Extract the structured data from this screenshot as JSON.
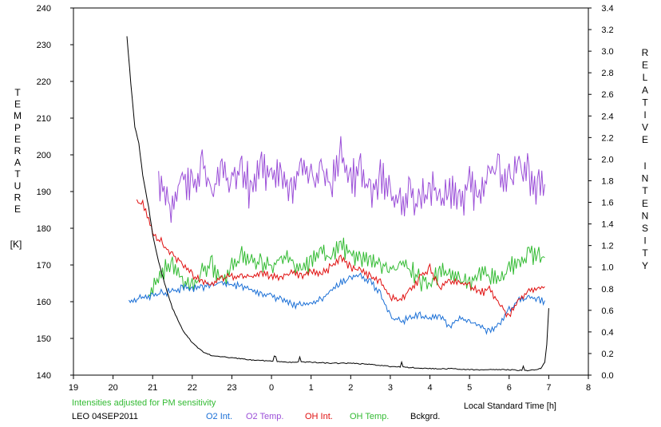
{
  "chart_data": {
    "type": "line",
    "left_axis": {
      "label_letters": [
        "T",
        "E",
        "M",
        "P",
        "E",
        "R",
        "A",
        "T",
        "U",
        "R",
        "E"
      ],
      "unit": "[K]",
      "min": 140,
      "max": 240,
      "step": 10
    },
    "right_axis": {
      "label_letters_1": [
        "R",
        "E",
        "L",
        "A",
        "T",
        "I",
        "V",
        "E"
      ],
      "label_letters_2": [
        "I",
        "N",
        "T",
        "E",
        "N",
        "S",
        "I",
        "T",
        "Y"
      ],
      "min": 0.0,
      "max": 3.4,
      "step": 0.2
    },
    "x_axis": {
      "label": "Local Standard Time [h]",
      "tick_labels": [
        "19",
        "20",
        "21",
        "22",
        "23",
        "0",
        "1",
        "2",
        "3",
        "4",
        "5",
        "6",
        "7",
        "8"
      ]
    },
    "note": "Intensities adjusted for PM sensitivity",
    "station": "LEO 04SEP2011",
    "legend": [
      {
        "label": "O2 Int.",
        "color": "#1a6fd6"
      },
      {
        "label": "O2 Temp.",
        "color": "#9b4fd8"
      },
      {
        "label": "OH Int.",
        "color": "#e01010"
      },
      {
        "label": "OH Temp.",
        "color": "#33bb33"
      },
      {
        "label": "Bckgrd.",
        "color": "#000000"
      }
    ],
    "series": [
      {
        "name": "O2 Temp.",
        "axis": "left",
        "color": "#9b4fd8",
        "x": [
          21.15,
          21.5,
          21.75,
          22.0,
          22.25,
          22.5,
          22.75,
          23.0,
          23.25,
          23.5,
          23.75,
          24.0,
          24.25,
          24.5,
          24.75,
          25.0,
          25.25,
          25.5,
          25.75,
          26.0,
          26.25,
          26.5,
          26.75,
          27.0,
          27.25,
          27.5,
          27.75,
          28.0,
          28.25,
          28.5,
          28.75,
          29.0,
          29.25,
          29.5,
          29.75,
          30.0,
          30.25,
          30.5,
          30.75,
          30.9
        ],
        "y": [
          193,
          186,
          194,
          190,
          197,
          189,
          196,
          193,
          195,
          190,
          198,
          192,
          194,
          190,
          196,
          193,
          195,
          191,
          199,
          193,
          195,
          188,
          193,
          189,
          186,
          190,
          187,
          191,
          188,
          190,
          186,
          192,
          189,
          194,
          196,
          193,
          197,
          194,
          191,
          192
        ]
      },
      {
        "name": "OH Temp.",
        "axis": "left",
        "color": "#33bb33",
        "x": [
          20.9,
          21.25,
          21.5,
          21.75,
          22.0,
          22.25,
          22.5,
          22.75,
          23.0,
          23.25,
          23.5,
          23.75,
          24.0,
          24.25,
          24.5,
          24.75,
          25.0,
          25.25,
          25.5,
          25.75,
          26.0,
          26.25,
          26.5,
          26.75,
          27.0,
          27.25,
          27.5,
          27.75,
          28.0,
          28.25,
          28.5,
          28.75,
          29.0,
          29.25,
          29.5,
          29.75,
          30.0,
          30.25,
          30.5,
          30.75,
          30.9
        ],
        "y": [
          162,
          168,
          170,
          166,
          164,
          168,
          170,
          166,
          170,
          172,
          171,
          170,
          169,
          172,
          171,
          169,
          171,
          173,
          172,
          176,
          173,
          172,
          171,
          170,
          168,
          170,
          169,
          166,
          165,
          168,
          167,
          166,
          165,
          168,
          167,
          166,
          169,
          171,
          173,
          172,
          172
        ]
      },
      {
        "name": "O2 Int.",
        "axis": "right",
        "color": "#1a6fd6",
        "x": [
          20.4,
          20.75,
          21.0,
          21.25,
          21.5,
          21.75,
          22.0,
          22.25,
          22.5,
          22.75,
          23.0,
          23.25,
          23.5,
          23.75,
          24.0,
          24.25,
          24.5,
          24.75,
          25.0,
          25.25,
          25.5,
          25.75,
          26.0,
          26.25,
          26.5,
          26.75,
          27.0,
          27.25,
          27.5,
          27.75,
          28.0,
          28.25,
          28.5,
          28.75,
          29.0,
          29.25,
          29.5,
          29.75,
          30.0,
          30.25,
          30.5,
          30.75,
          30.9
        ],
        "y": [
          0.68,
          0.72,
          0.74,
          0.76,
          0.78,
          0.8,
          0.8,
          0.82,
          0.84,
          0.85,
          0.84,
          0.82,
          0.78,
          0.74,
          0.74,
          0.7,
          0.66,
          0.64,
          0.66,
          0.7,
          0.78,
          0.85,
          0.9,
          0.92,
          0.86,
          0.75,
          0.54,
          0.5,
          0.52,
          0.56,
          0.52,
          0.55,
          0.45,
          0.52,
          0.5,
          0.46,
          0.4,
          0.48,
          0.6,
          0.7,
          0.72,
          0.7,
          0.69
        ]
      },
      {
        "name": "OH Int.",
        "axis": "right",
        "color": "#e01010",
        "x": [
          20.6,
          20.75,
          20.9,
          21.0,
          21.25,
          21.5,
          21.75,
          22.0,
          22.25,
          22.5,
          22.75,
          23.0,
          23.25,
          23.5,
          23.75,
          24.0,
          24.25,
          24.5,
          24.75,
          25.0,
          25.25,
          25.5,
          25.75,
          26.0,
          26.25,
          26.5,
          26.75,
          27.0,
          27.25,
          27.5,
          27.75,
          28.0,
          28.25,
          28.5,
          28.75,
          29.0,
          29.25,
          29.5,
          29.75,
          30.0,
          30.25,
          30.5,
          30.75,
          30.9
        ],
        "y": [
          1.6,
          1.58,
          1.45,
          1.3,
          1.22,
          1.12,
          1.02,
          0.94,
          0.86,
          0.84,
          0.9,
          0.92,
          0.9,
          0.92,
          0.94,
          0.92,
          0.9,
          0.95,
          0.92,
          0.96,
          0.94,
          1.0,
          1.1,
          1.0,
          0.96,
          0.92,
          0.86,
          0.72,
          0.7,
          0.78,
          0.9,
          1.0,
          0.8,
          0.88,
          0.85,
          0.84,
          0.76,
          0.8,
          0.65,
          0.55,
          0.7,
          0.78,
          0.8,
          0.82
        ]
      },
      {
        "name": "Bckgrd.",
        "axis": "right",
        "color": "#000000",
        "x": [
          20.35,
          20.45,
          20.55,
          20.65,
          20.75,
          20.9,
          21.0,
          21.15,
          21.3,
          21.5,
          21.75,
          22.0,
          22.25,
          22.5,
          23.0,
          23.5,
          24.0,
          24.5,
          25.0,
          25.5,
          26.0,
          26.5,
          27.0,
          27.5,
          28.0,
          28.5,
          29.0,
          29.5,
          30.0,
          30.5,
          30.8,
          30.9,
          30.95,
          31.0
        ],
        "y": [
          3.14,
          2.7,
          2.3,
          2.15,
          1.85,
          1.55,
          1.3,
          1.05,
          0.85,
          0.62,
          0.42,
          0.3,
          0.22,
          0.18,
          0.16,
          0.14,
          0.13,
          0.12,
          0.12,
          0.11,
          0.11,
          0.1,
          0.08,
          0.07,
          0.06,
          0.06,
          0.05,
          0.05,
          0.05,
          0.04,
          0.06,
          0.12,
          0.28,
          0.62
        ]
      }
    ]
  }
}
